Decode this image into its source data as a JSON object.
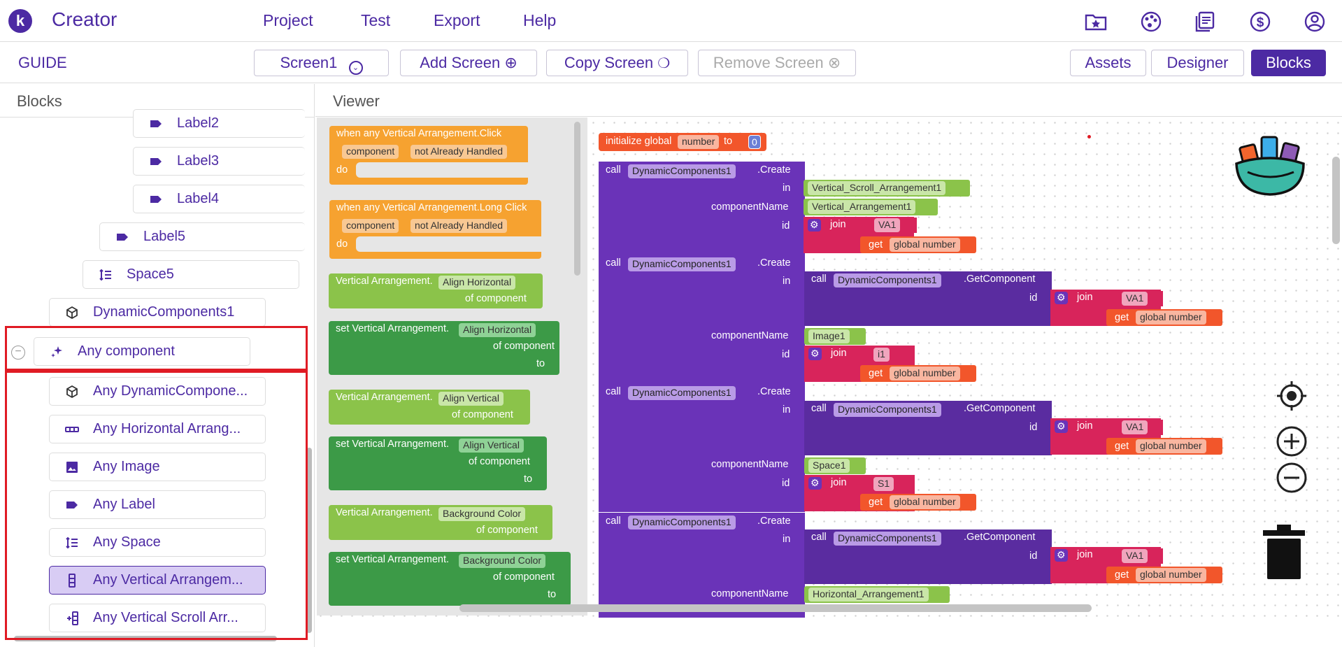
{
  "app": {
    "logo_letter": "k",
    "name": "Creator"
  },
  "menu": [
    "Project",
    "Test",
    "Export",
    "Help"
  ],
  "toolbar": {
    "guide": "GUIDE",
    "screen": "Screen1",
    "add_screen": "Add Screen",
    "copy_screen": "Copy Screen",
    "remove_screen": "Remove Screen",
    "assets": "Assets",
    "designer": "Designer",
    "blocks": "Blocks"
  },
  "panels": {
    "blocks_title": "Blocks",
    "viewer_title": "Viewer"
  },
  "tree": {
    "labels": [
      "Label2",
      "Label3",
      "Label4",
      "Label5"
    ],
    "space": "Space5",
    "dynamic": "DynamicComponents1",
    "any_component": "Any component",
    "any_items": [
      "Any DynamicCompone...",
      "Any Horizontal Arrang...",
      "Any Image",
      "Any Label",
      "Any Space",
      "Any Vertical Arrangem...",
      "Any Vertical Scroll Arr..."
    ]
  },
  "flyout": {
    "ev_click": "when any Vertical Arrangement.Click",
    "ev_long": "when any Vertical Arrangement.Long Click",
    "component": "component",
    "not_handled": "not Already Handled",
    "do": "do",
    "va_get": "Vertical Arrangement.",
    "va_set": "set Vertical Arrangement.",
    "align_h": "Align Horizontal",
    "align_v": "Align Vertical",
    "bg_color": "Background Color",
    "of_component": "of component",
    "to": "to"
  },
  "code": {
    "init": "initialize global",
    "var": "number",
    "to": "to",
    "zero": "0",
    "call": "call",
    "dc": "DynamicComponents1",
    "create": ".Create",
    "getcomp": ".GetComponent",
    "in": "in",
    "componentName": "componentName",
    "id": "id",
    "join": "join",
    "get": "get",
    "global_number": "global number",
    "vsa": "Vertical_Scroll_Arrangement1",
    "va": "Vertical_Arrangement1",
    "image": "Image1",
    "space": "Space1",
    "ha": "Horizontal_Arrangement1",
    "s_va1": "VA1",
    "s_i1": "i1",
    "s_s1": "S1"
  },
  "colors": {
    "brand": "#4c2aa3",
    "highlight": "#e01b24"
  }
}
